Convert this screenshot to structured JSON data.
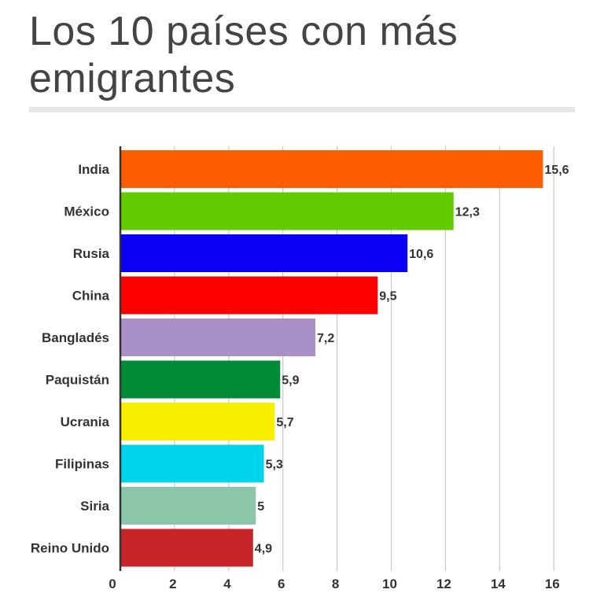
{
  "title": "Los 10 países con más emigrantes",
  "chart_data": {
    "type": "bar",
    "orientation": "horizontal",
    "title": "Los 10 países con más emigrantes",
    "xlabel": "",
    "ylabel": "",
    "xlim": [
      0,
      17
    ],
    "x_ticks": [
      0,
      2,
      4,
      6,
      8,
      10,
      12,
      14,
      16
    ],
    "x_tick_labels": [
      "0",
      "2",
      "4",
      "6",
      "8",
      "10",
      "12",
      "14",
      "16"
    ],
    "grid": true,
    "categories": [
      "India",
      "México",
      "Rusia",
      "China",
      "Bangladés",
      "Paquistán",
      "Ucrania",
      "Filipinas",
      "Siria",
      "Reino Unido"
    ],
    "values": [
      15.6,
      12.3,
      10.6,
      9.5,
      7.2,
      5.9,
      5.7,
      5.3,
      5,
      4.9
    ],
    "value_labels": [
      "15,6",
      "12,3",
      "10,6",
      "9,5",
      "7,2",
      "5,9",
      "5,7",
      "5,3",
      "5",
      "4,9"
    ],
    "colors": [
      "#ff5e00",
      "#62cc00",
      "#0a00f5",
      "#ff0000",
      "#a990c8",
      "#008a36",
      "#f7ee00",
      "#00d4ea",
      "#8cc6a8",
      "#c8252a"
    ]
  }
}
